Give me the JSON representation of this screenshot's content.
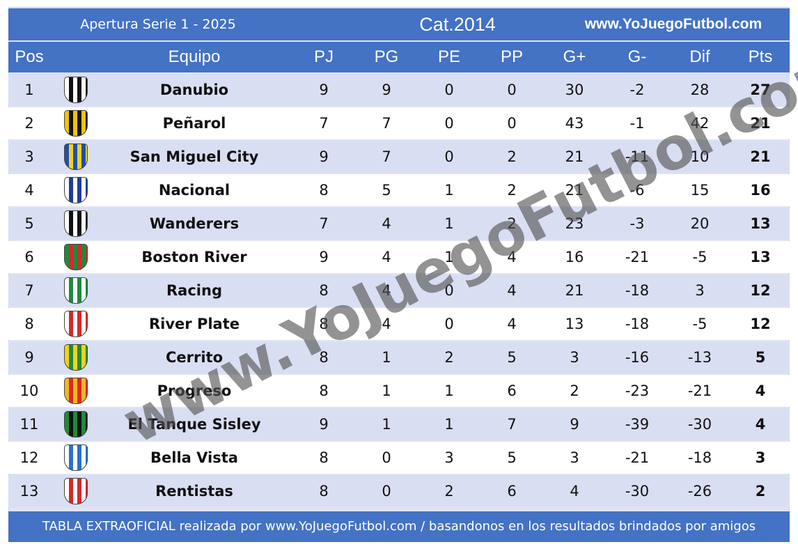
{
  "header": {
    "tournament": "Apertura Serie 1 - 2025",
    "category": "Cat.2014",
    "website": "www.YoJuegoFutbol.com"
  },
  "columns": [
    "Pos",
    "Equipo",
    "PJ",
    "PG",
    "PE",
    "PP",
    "G+",
    "G-",
    "Dif",
    "Pts"
  ],
  "rows": [
    {
      "pos": "1",
      "team": "Danubio",
      "pj": "9",
      "pg": "9",
      "pe": "0",
      "pp": "0",
      "gf": "30",
      "ga": "-2",
      "dif": "28",
      "pts": "27",
      "crest": [
        "#ffffff",
        "#111111"
      ]
    },
    {
      "pos": "2",
      "team": "Peñarol",
      "pj": "7",
      "pg": "7",
      "pe": "0",
      "pp": "0",
      "gf": "43",
      "ga": "-1",
      "dif": "42",
      "pts": "21",
      "crest": [
        "#f5c400",
        "#111111"
      ]
    },
    {
      "pos": "3",
      "team": "San Miguel City",
      "pj": "9",
      "pg": "7",
      "pe": "0",
      "pp": "2",
      "gf": "21",
      "ga": "-11",
      "dif": "10",
      "pts": "21",
      "crest": [
        "#1f4fb0",
        "#f2d21b"
      ]
    },
    {
      "pos": "4",
      "team": "Nacional",
      "pj": "8",
      "pg": "5",
      "pe": "1",
      "pp": "2",
      "gf": "21",
      "ga": "-6",
      "dif": "15",
      "pts": "16",
      "crest": [
        "#ffffff",
        "#1f3c9c"
      ]
    },
    {
      "pos": "5",
      "team": "Wanderers",
      "pj": "7",
      "pg": "4",
      "pe": "1",
      "pp": "2",
      "gf": "23",
      "ga": "-3",
      "dif": "20",
      "pts": "13",
      "crest": [
        "#ffffff",
        "#111111"
      ]
    },
    {
      "pos": "6",
      "team": "Boston River",
      "pj": "9",
      "pg": "4",
      "pe": "1",
      "pp": "4",
      "gf": "16",
      "ga": "-21",
      "dif": "-5",
      "pts": "13",
      "crest": [
        "#1e8a3a",
        "#d62828"
      ]
    },
    {
      "pos": "7",
      "team": "Racing",
      "pj": "8",
      "pg": "4",
      "pe": "0",
      "pp": "4",
      "gf": "21",
      "ga": "-18",
      "dif": "3",
      "pts": "12",
      "crest": [
        "#ffffff",
        "#1e8a3a"
      ]
    },
    {
      "pos": "8",
      "team": "River Plate",
      "pj": "8",
      "pg": "4",
      "pe": "0",
      "pp": "4",
      "gf": "13",
      "ga": "-18",
      "dif": "-5",
      "pts": "12",
      "crest": [
        "#ffffff",
        "#d62828"
      ]
    },
    {
      "pos": "9",
      "team": "Cerrito",
      "pj": "8",
      "pg": "1",
      "pe": "2",
      "pp": "5",
      "gf": "3",
      "ga": "-16",
      "dif": "-13",
      "pts": "5",
      "crest": [
        "#f2d21b",
        "#1e8a3a"
      ]
    },
    {
      "pos": "10",
      "team": "Progreso",
      "pj": "8",
      "pg": "1",
      "pe": "1",
      "pp": "6",
      "gf": "2",
      "ga": "-23",
      "dif": "-21",
      "pts": "4",
      "crest": [
        "#f2b81b",
        "#d62828"
      ]
    },
    {
      "pos": "11",
      "team": "El Tanque Sisley",
      "pj": "9",
      "pg": "1",
      "pe": "1",
      "pp": "7",
      "gf": "9",
      "ga": "-39",
      "dif": "-30",
      "pts": "4",
      "crest": [
        "#1e8a3a",
        "#111111"
      ]
    },
    {
      "pos": "12",
      "team": "Bella Vista",
      "pj": "8",
      "pg": "0",
      "pe": "3",
      "pp": "5",
      "gf": "3",
      "ga": "-21",
      "dif": "-18",
      "pts": "3",
      "crest": [
        "#ffffff",
        "#2a6fd1"
      ]
    },
    {
      "pos": "13",
      "team": "Rentistas",
      "pj": "8",
      "pg": "0",
      "pe": "2",
      "pp": "6",
      "gf": "4",
      "ga": "-30",
      "dif": "-26",
      "pts": "2",
      "crest": [
        "#ffffff",
        "#d62828"
      ]
    }
  ],
  "footer": "TABLA EXTRAOFICIAL realizada por www.YoJuegoFutbol.com / basandonos en los resultados brindados por amigos",
  "watermark": "www.YoJuegoFutbol.com",
  "colors": {
    "header_blue": "#4472c4",
    "stripe": "#d9dff2"
  }
}
